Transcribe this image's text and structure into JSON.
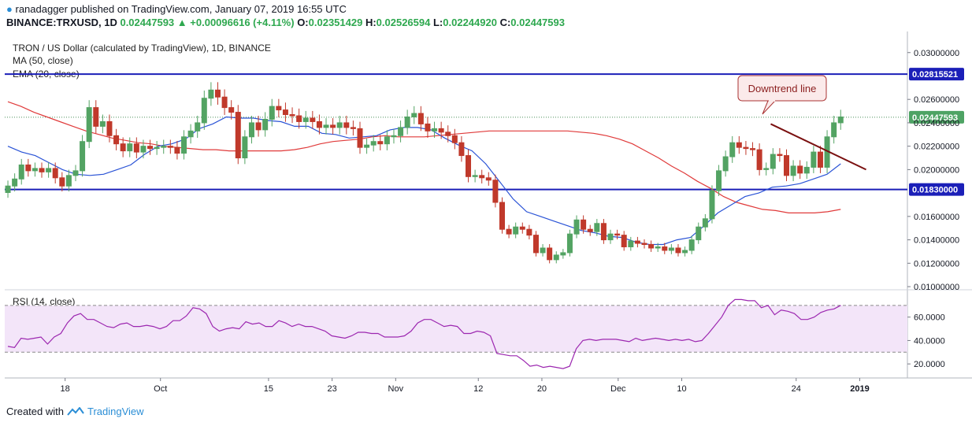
{
  "header": {
    "publisher": "ranadagger",
    "published_text": "published on TradingView.com, January 07, 2019 16:55 UTC",
    "symbol": "BINANCE:TRXUSD, 1D",
    "last": "0.02447593",
    "change": "+0.00096616 (+4.11%)",
    "o_label": "O:",
    "o_value": "0.02351429",
    "h_label": "H:",
    "h_value": "0.02526594",
    "l_label": "L:",
    "l_value": "0.02244920",
    "c_label": "C:",
    "c_value": "0.02447593"
  },
  "legend": {
    "title": "TRON / US Dollar (calculated by TradingView), 1D, BINANCE",
    "ma": "MA (50, close)",
    "ema": "EMA (20, close)",
    "rsi": "RSI (14, close)"
  },
  "annotation": {
    "text": "Downtrend line"
  },
  "footer": {
    "created_with": "Created with",
    "brand": "TradingView"
  },
  "colors": {
    "up": "#53a363",
    "down": "#c0392b",
    "ma": "#e03a3a",
    "ema": "#2a53d6",
    "level": "#1b1fb8",
    "rsi": "#9c27b0",
    "rsi_band": "#f3e5f9",
    "trendline": "#7a1010"
  },
  "chart_data": [
    {
      "type": "candlestick",
      "y_axis_labels": [
        "0.03000000",
        "0.02600000",
        "0.02400000",
        "0.02200000",
        "0.02000000",
        "0.01600000",
        "0.01400000",
        "0.01200000",
        "0.01000000"
      ],
      "y_axis_ticks": [
        0.03,
        0.026,
        0.024,
        0.022,
        0.02,
        0.016,
        0.014,
        0.012,
        0.01
      ],
      "ylim": [
        0.0098,
        0.0318
      ],
      "x_tick_labels": [
        "18",
        "Oct",
        "15",
        "23",
        "Nov",
        "12",
        "20",
        "Dec",
        "10",
        "24",
        "2019"
      ],
      "x_tick_index": [
        9,
        24,
        41,
        51,
        61,
        74,
        84,
        96,
        106,
        124,
        134
      ],
      "n_bars": 142,
      "horizontal_levels": [
        {
          "value": 0.02815521,
          "label": "0.02815521"
        },
        {
          "value": 0.0183,
          "label": "0.01830000"
        }
      ],
      "last_price": {
        "value": 0.02447593,
        "label": "0.02447593"
      },
      "trendline": {
        "from": [
          120,
          0.0239
        ],
        "to": [
          135,
          0.02
        ]
      },
      "close": [
        0.0186,
        0.0192,
        0.0204,
        0.0199,
        0.0201,
        0.0198,
        0.0201,
        0.0193,
        0.0186,
        0.0195,
        0.0199,
        0.0224,
        0.0253,
        0.0237,
        0.0241,
        0.0229,
        0.0222,
        0.0216,
        0.0222,
        0.0215,
        0.022,
        0.0218,
        0.0219,
        0.022,
        0.0219,
        0.0214,
        0.0228,
        0.0233,
        0.024,
        0.0261,
        0.0268,
        0.0262,
        0.0253,
        0.0249,
        0.021,
        0.0228,
        0.024,
        0.0234,
        0.0243,
        0.0254,
        0.0251,
        0.0247,
        0.0246,
        0.0241,
        0.0244,
        0.0241,
        0.0236,
        0.0238,
        0.0236,
        0.024,
        0.0236,
        0.0235,
        0.0219,
        0.0221,
        0.0224,
        0.0222,
        0.0228,
        0.0229,
        0.0236,
        0.0245,
        0.0248,
        0.0239,
        0.0233,
        0.0235,
        0.0232,
        0.0229,
        0.0223,
        0.0212,
        0.0194,
        0.0195,
        0.0193,
        0.0191,
        0.0172,
        0.0149,
        0.0145,
        0.0151,
        0.0149,
        0.0144,
        0.0129,
        0.0133,
        0.0123,
        0.0127,
        0.0129,
        0.0145,
        0.0157,
        0.0149,
        0.0147,
        0.0154,
        0.014,
        0.0145,
        0.0144,
        0.0134,
        0.0139,
        0.0137,
        0.0136,
        0.0133,
        0.0134,
        0.0131,
        0.0133,
        0.0129,
        0.0131,
        0.014,
        0.0151,
        0.0158,
        0.0182,
        0.0199,
        0.0211,
        0.0223,
        0.0219,
        0.0218,
        0.0217,
        0.02,
        0.0201,
        0.0213,
        0.0212,
        0.0195,
        0.0203,
        0.0197,
        0.0202,
        0.0215,
        0.0202,
        0.0228,
        0.024,
        0.0245
      ],
      "series": [
        {
          "name": "MA (50, close)",
          "values": [
            0.0258,
            0.0254,
            0.0249,
            0.0245,
            0.0241,
            0.0237,
            0.0233,
            0.023,
            0.0227,
            0.0225,
            0.0223,
            0.0222,
            0.022,
            0.0219,
            0.0218,
            0.0217,
            0.0217,
            0.0216,
            0.0216,
            0.0216,
            0.0216,
            0.0216,
            0.0217,
            0.0219,
            0.0222,
            0.0224,
            0.0225,
            0.0226,
            0.0228,
            0.0229,
            0.0228,
            0.0228,
            0.0228,
            0.0229,
            0.023,
            0.0231,
            0.0232,
            0.0233,
            0.0233,
            0.0233,
            0.0233,
            0.0233,
            0.0233,
            0.0233,
            0.0232,
            0.0231,
            0.0229,
            0.0226,
            0.0222,
            0.0216,
            0.021,
            0.0203,
            0.0197,
            0.019,
            0.0184,
            0.0177,
            0.0172,
            0.0169,
            0.0166,
            0.0165,
            0.0163,
            0.0163,
            0.0163,
            0.0164,
            0.0166
          ]
        },
        {
          "name": "EMA (20, close)",
          "values": [
            0.022,
            0.0215,
            0.0212,
            0.0206,
            0.02,
            0.0196,
            0.0195,
            0.0196,
            0.02,
            0.0204,
            0.0213,
            0.022,
            0.0222,
            0.0226,
            0.0235,
            0.0239,
            0.0245,
            0.0244,
            0.0244,
            0.0242,
            0.0241,
            0.0237,
            0.0237,
            0.0231,
            0.023,
            0.0227,
            0.0228,
            0.0229,
            0.0234,
            0.0236,
            0.0236,
            0.0234,
            0.0227,
            0.0221,
            0.0216,
            0.0205,
            0.019,
            0.0175,
            0.0164,
            0.016,
            0.0156,
            0.0152,
            0.0148,
            0.0146,
            0.0143,
            0.0142,
            0.0138,
            0.0136,
            0.0136,
            0.014,
            0.0142,
            0.0152,
            0.0163,
            0.017,
            0.0177,
            0.018,
            0.0185,
            0.0186,
            0.0188,
            0.0192,
            0.0196,
            0.0205
          ]
        },
        {
          "name": "RSI (14, close)",
          "ylim": [
            8,
            82
          ],
          "levels": [
            70,
            30
          ],
          "y_axis_labels": [
            "60.0000",
            "40.0000",
            "20.0000"
          ],
          "y_axis_ticks": [
            60,
            40,
            20
          ],
          "values": [
            35,
            34,
            42,
            41,
            42,
            43,
            37,
            43,
            46,
            55,
            61,
            63,
            58,
            58,
            55,
            52,
            51,
            54,
            55,
            52,
            52,
            53,
            52,
            50,
            52,
            57,
            57,
            61,
            68,
            67,
            63,
            52,
            48,
            50,
            51,
            50,
            56,
            54,
            55,
            52,
            52,
            57,
            55,
            52,
            54,
            52,
            52,
            50,
            48,
            44,
            43,
            42,
            44,
            47,
            47,
            46,
            46,
            43,
            43,
            43,
            44,
            48,
            55,
            58,
            58,
            55,
            52,
            53,
            52,
            46,
            46,
            48,
            47,
            44,
            29,
            28,
            27,
            27,
            23,
            18,
            19,
            17,
            18,
            17,
            16,
            18,
            33,
            40,
            41,
            40,
            41,
            41,
            41,
            40,
            39,
            42,
            40,
            41,
            42,
            41,
            40,
            41,
            40,
            41,
            39,
            40,
            46,
            53,
            60,
            70,
            75,
            75,
            74,
            74,
            68,
            70,
            62,
            66,
            65,
            63,
            58,
            58,
            60,
            64,
            66,
            67,
            70
          ]
        }
      ]
    }
  ]
}
